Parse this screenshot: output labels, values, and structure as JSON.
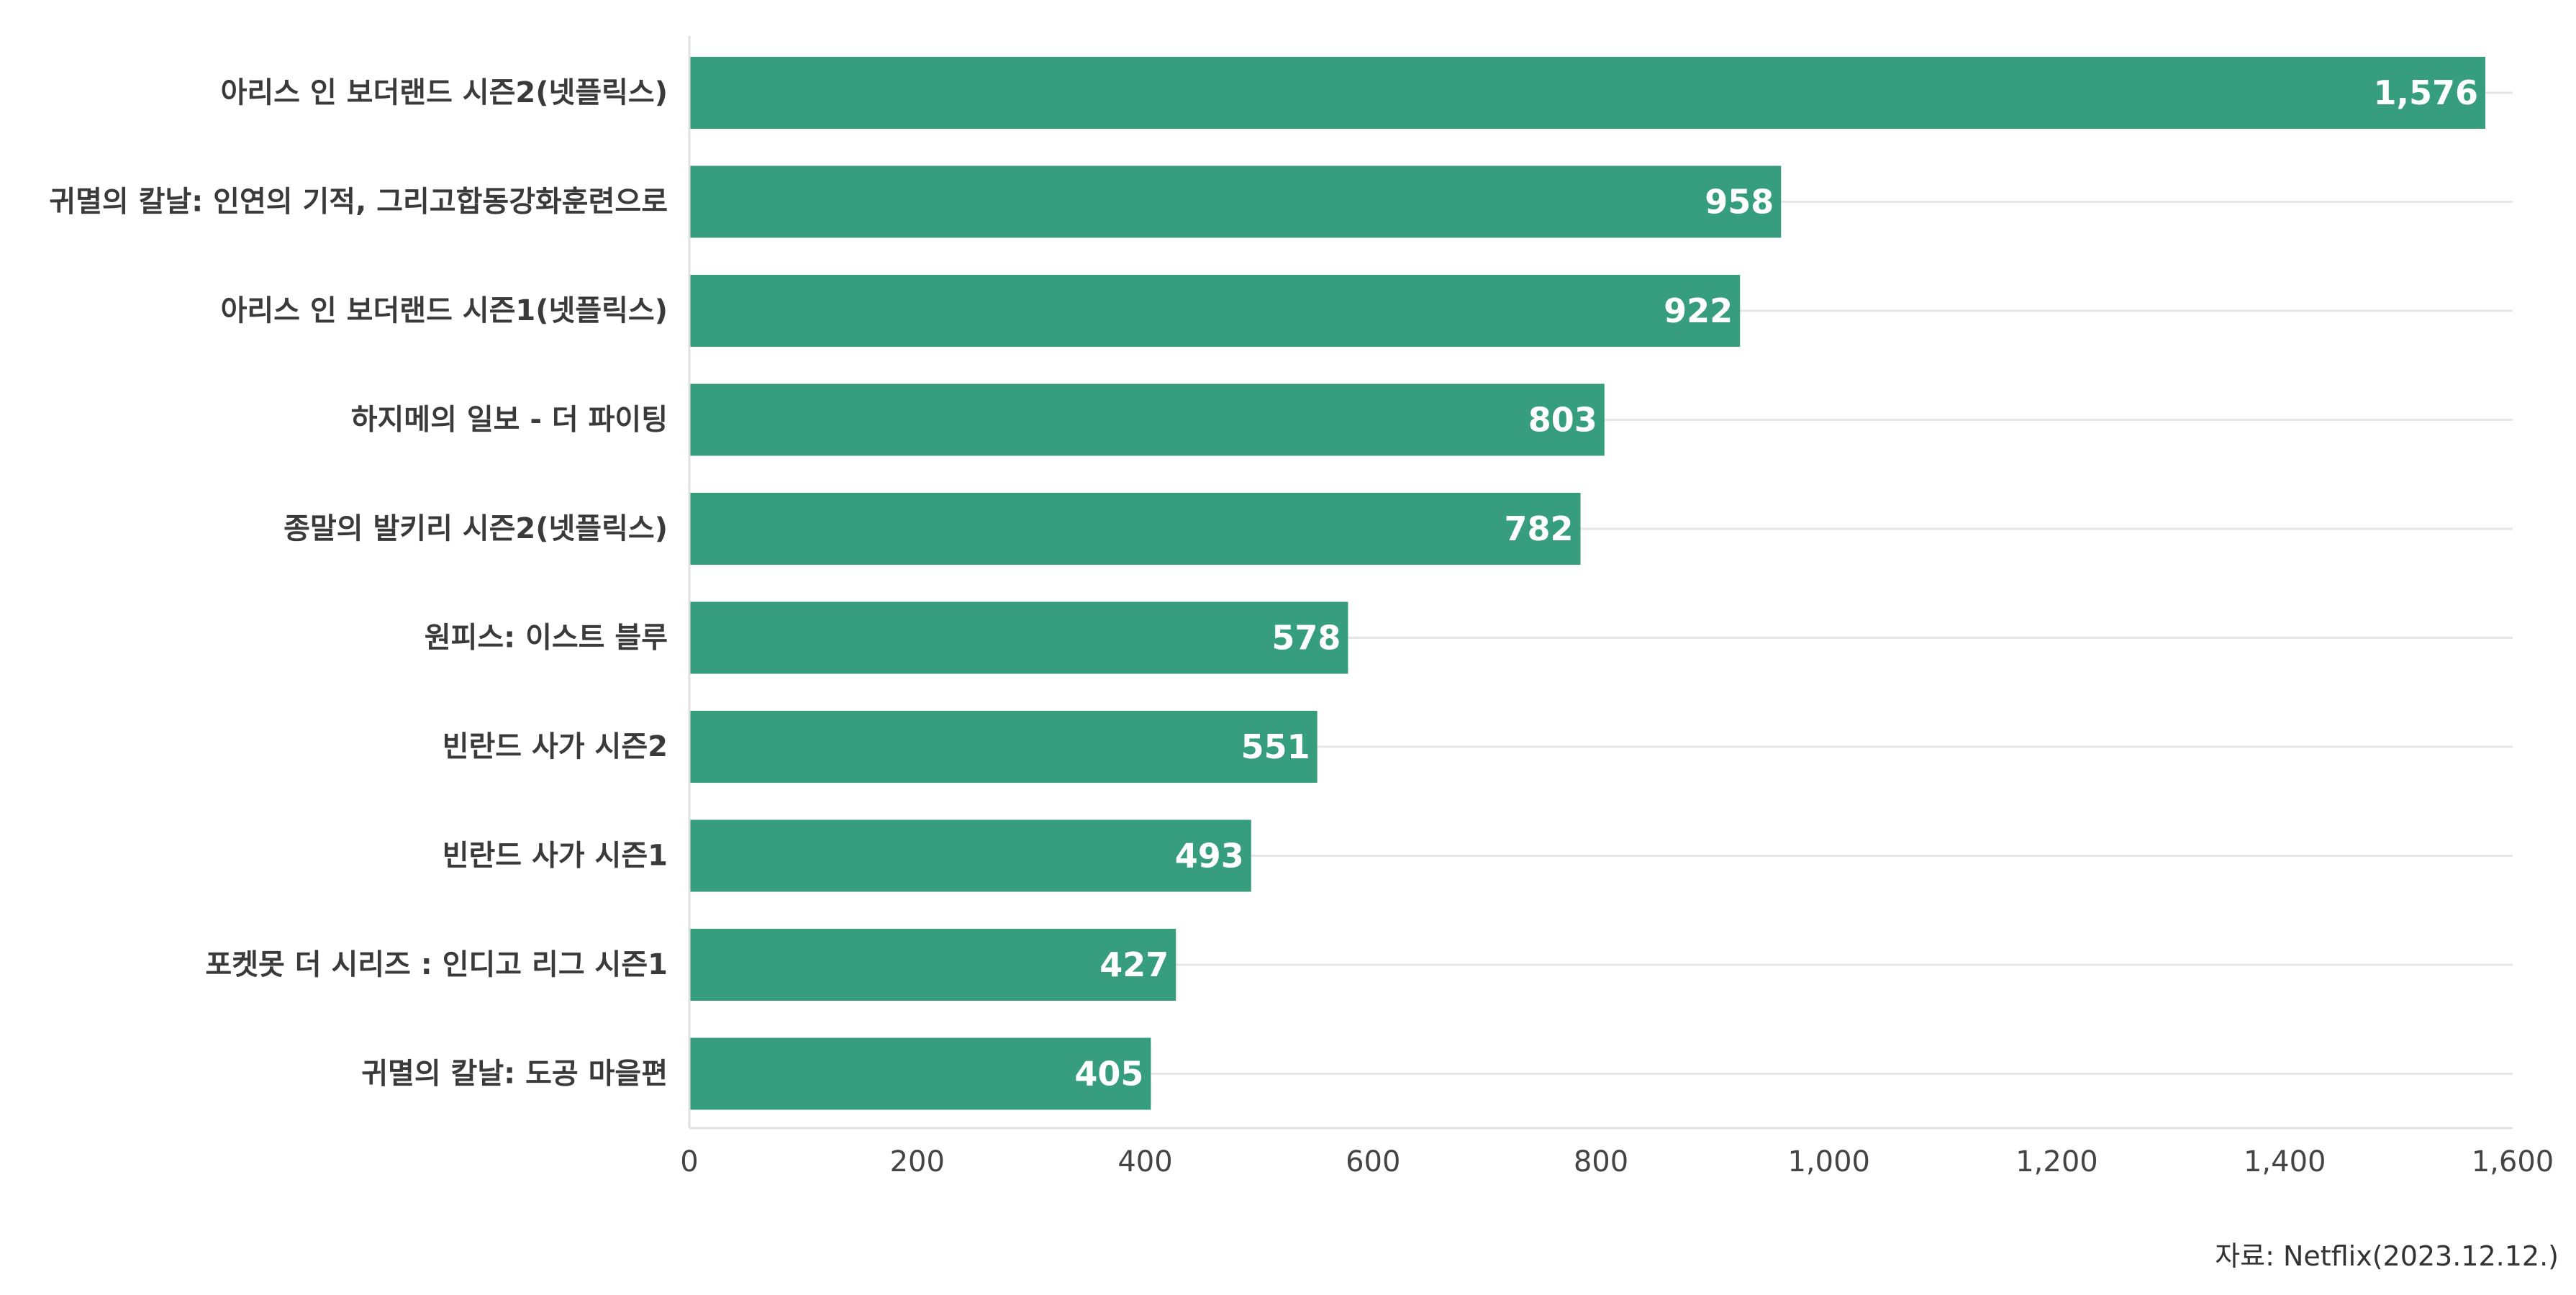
{
  "chart_data": {
    "type": "bar",
    "orientation": "horizontal",
    "categories": [
      "아리스 인 보더랜드 시즌2(넷플릭스)",
      "귀멸의 칼날: 인연의 기적, 그리고합동강화훈련으로",
      "아리스 인 보더랜드 시즌1(넷플릭스)",
      "하지메의 일보 - 더 파이팅",
      "종말의 발키리 시즌2(넷플릭스)",
      "원피스: 이스트 블루",
      "빈란드 사가 시즌2",
      "빈란드 사가 시즌1",
      "포켓못 더 시리즈 : 인디고 리그 시즌1",
      "귀멸의 칼날: 도공 마을편"
    ],
    "values": [
      1576,
      958,
      922,
      803,
      782,
      578,
      551,
      493,
      427,
      405
    ],
    "value_labels": [
      "1,576",
      "958",
      "922",
      "803",
      "782",
      "578",
      "551",
      "493",
      "427",
      "405"
    ],
    "xlim": [
      0,
      1600
    ],
    "xticks": [
      0,
      200,
      400,
      600,
      800,
      1000,
      1200,
      1400,
      1600
    ],
    "xtick_labels": [
      "0",
      "200",
      "400",
      "600",
      "800",
      "1,000",
      "1,200",
      "1,400",
      "1,600"
    ],
    "bar_color": "#369e7c",
    "gridlines": true,
    "title": "",
    "xlabel": "",
    "ylabel": ""
  },
  "source": "자료: Netflix(2023.12.12.)"
}
